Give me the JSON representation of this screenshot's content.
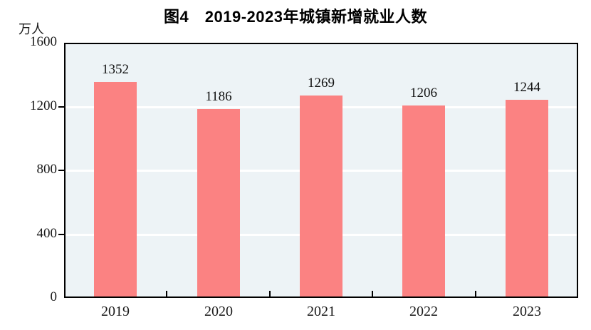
{
  "chart_data": {
    "type": "bar",
    "title": "图4　2019-2023年城镇新增就业人数",
    "unit_label": "万人",
    "categories": [
      "2019",
      "2020",
      "2021",
      "2022",
      "2023"
    ],
    "values": [
      1352,
      1186,
      1269,
      1206,
      1244
    ],
    "ylim": [
      0,
      1600
    ],
    "yticks": [
      0,
      400,
      800,
      1200,
      1600
    ],
    "gridlines_at": [
      400,
      800,
      1200
    ],
    "xlabel": "",
    "ylabel": "万人",
    "grid": "on",
    "legend": "none",
    "bar_color": "#fb8282",
    "plot_background": "#edf3f6",
    "gridline_color": "#ffffff",
    "frame_color": "#000000",
    "text_color": "#1a1a1a"
  }
}
